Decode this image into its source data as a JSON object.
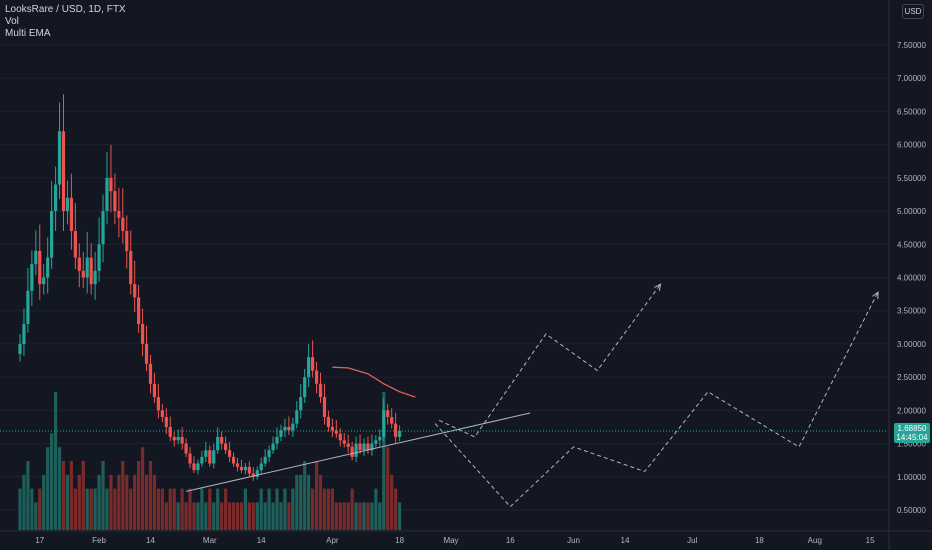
{
  "legend": {
    "title": "LooksRare / USD, 1D, FTX",
    "vol": "Vol",
    "ema": "Multi EMA"
  },
  "currency_button": "USD",
  "price_tag": {
    "price": "1.68850",
    "countdown": "14:45:04"
  },
  "colors": {
    "background": "#131722",
    "up": "#26a69a",
    "down": "#ef5350",
    "up_volume": "#1f5f5a",
    "down_volume": "#7a2a2a",
    "ema": "#e0605a",
    "drawings": "#b2b5be",
    "axis_text": "#b2b5be",
    "grid": "#1e2230"
  },
  "chart_data": {
    "type": "candlestick",
    "title": "LooksRare / USD, 1D, FTX",
    "x_tick_labels": [
      "17",
      "Feb",
      "14",
      "Mar",
      "14",
      "Apr",
      "18",
      "May",
      "16",
      "Jun",
      "14",
      "Jul",
      "18",
      "Aug",
      "15"
    ],
    "y_tick_labels": [
      "0.50000",
      "1.00000",
      "1.50000",
      "2.00000",
      "2.50000",
      "3.00000",
      "3.50000",
      "4.00000",
      "4.50000",
      "5.00000",
      "5.50000",
      "6.00000",
      "6.50000",
      "7.00000",
      "7.50000"
    ],
    "ylim": [
      0.3,
      7.85
    ],
    "x_range_days": [
      "2022-01-12",
      "2022-08-18"
    ],
    "last_price": 1.6885,
    "candles": {
      "start_date": "2022-01-12",
      "close": [
        3.0,
        3.3,
        3.8,
        4.2,
        4.4,
        3.9,
        4.0,
        4.3,
        5.0,
        5.4,
        6.2,
        5.0,
        5.2,
        4.7,
        4.3,
        4.1,
        4.0,
        4.3,
        3.9,
        4.1,
        4.5,
        5.0,
        5.5,
        5.3,
        5.0,
        4.9,
        4.7,
        4.4,
        3.9,
        3.7,
        3.3,
        3.0,
        2.7,
        2.4,
        2.2,
        2.0,
        1.9,
        1.75,
        1.6,
        1.55,
        1.6,
        1.5,
        1.35,
        1.2,
        1.1,
        1.2,
        1.3,
        1.4,
        1.2,
        1.4,
        1.6,
        1.5,
        1.4,
        1.3,
        1.2,
        1.15,
        1.1,
        1.15,
        1.05,
        1.0,
        1.1,
        1.2,
        1.3,
        1.4,
        1.5,
        1.6,
        1.7,
        1.75,
        1.7,
        1.8,
        2.0,
        2.2,
        2.5,
        2.8,
        2.6,
        2.4,
        2.2,
        1.9,
        1.75,
        1.7,
        1.65,
        1.55,
        1.5,
        1.45,
        1.3,
        1.5,
        1.4,
        1.5,
        1.4,
        1.5,
        1.55,
        1.6,
        2.0,
        1.9,
        1.8,
        1.6,
        1.69
      ]
    },
    "volume": {
      "values_relative": [
        0.3,
        0.4,
        0.5,
        0.3,
        0.2,
        0.3,
        0.4,
        0.6,
        0.7,
        1.0,
        0.6,
        0.5,
        0.4,
        0.5,
        0.3,
        0.4,
        0.5,
        0.3,
        0.3,
        0.3,
        0.4,
        0.5,
        0.3,
        0.4,
        0.3,
        0.4,
        0.5,
        0.4,
        0.3,
        0.4,
        0.5,
        0.6,
        0.4,
        0.5,
        0.4,
        0.3,
        0.3,
        0.2,
        0.3,
        0.3,
        0.2,
        0.3,
        0.2,
        0.3,
        0.2,
        0.2,
        0.3,
        0.2,
        0.3,
        0.2,
        0.3,
        0.2,
        0.3,
        0.2,
        0.2,
        0.2,
        0.2,
        0.3,
        0.2,
        0.2,
        0.2,
        0.3,
        0.2,
        0.3,
        0.2,
        0.3,
        0.2,
        0.3,
        0.2,
        0.3,
        0.4,
        0.4,
        0.5,
        0.4,
        0.3,
        0.5,
        0.4,
        0.3,
        0.3,
        0.3,
        0.2,
        0.2,
        0.2,
        0.2,
        0.3,
        0.2,
        0.2,
        0.2,
        0.2,
        0.2,
        0.3,
        0.2,
        1.0,
        0.6,
        0.4,
        0.3,
        0.2
      ]
    },
    "ema_line": {
      "x_dates": [
        "2022-04-01",
        "2022-04-05",
        "2022-04-10",
        "2022-04-14",
        "2022-04-18",
        "2022-04-22"
      ],
      "y": [
        2.65,
        2.64,
        2.55,
        2.4,
        2.28,
        2.2
      ]
    },
    "trendline": {
      "x_dates": [
        "2022-02-23",
        "2022-05-21"
      ],
      "y": [
        0.78,
        1.96
      ]
    },
    "projections": [
      {
        "x_dates": [
          "2022-04-28",
          "2022-05-07",
          "2022-05-25",
          "2022-06-07",
          "2022-06-23"
        ],
        "y": [
          1.85,
          1.6,
          3.15,
          2.6,
          3.9
        ]
      },
      {
        "x_dates": [
          "2022-04-27",
          "2022-05-16",
          "2022-06-01",
          "2022-06-19",
          "2022-07-05",
          "2022-07-28",
          "2022-08-17"
        ],
        "y": [
          1.8,
          0.55,
          1.45,
          1.08,
          2.28,
          1.45,
          3.78
        ]
      }
    ]
  }
}
